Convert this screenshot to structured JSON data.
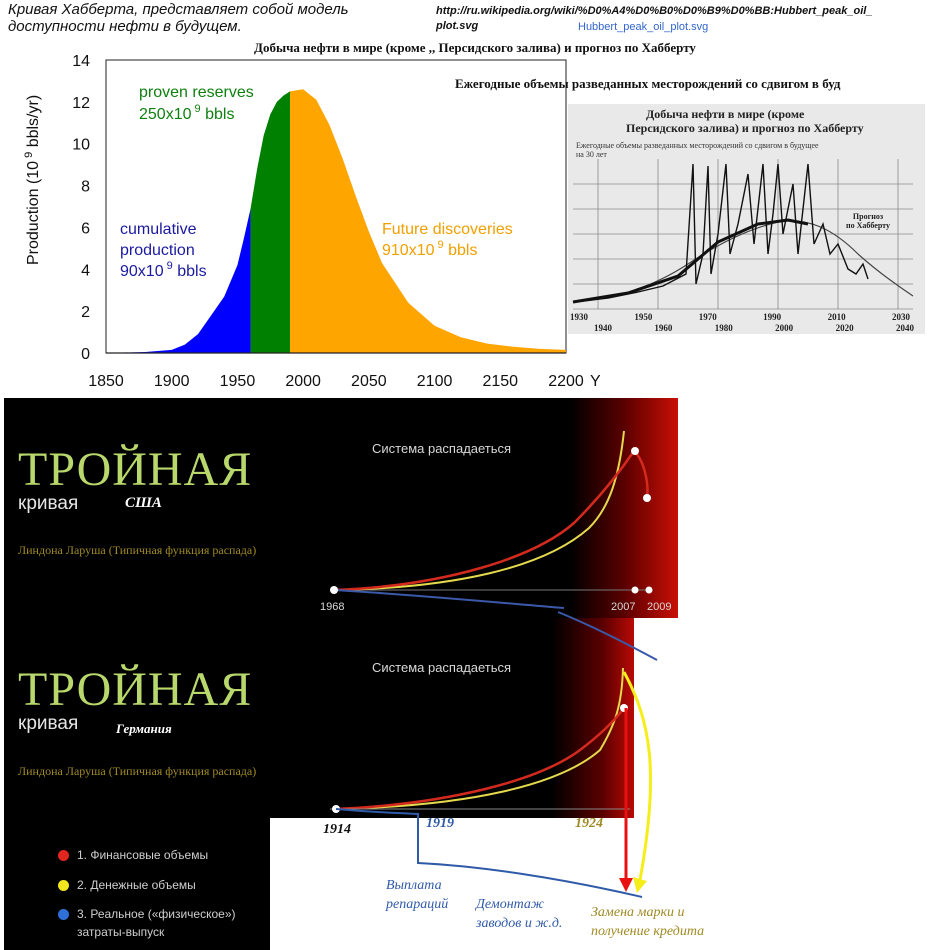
{
  "caption": "Кривая Хабберта, представляет собой модель доступности нефти в будущем.",
  "source": {
    "url": "http://ru.wikipedia.org/wiki/%D0%A4%D0%B0%D0%B9%D0%BB:Hubbert_peak_oil_plot.svg",
    "link_text": "Hubbert_peak_oil_plot.svg"
  },
  "hubbert_chart": {
    "title": "Добыча нефти в мире (кроме ,, Персидского залива) и прогноз по Хабберту",
    "subtitle": "Ежегодные объемы разведанных месторождений со сдвигом в буд",
    "ylabel": "Production (10 9 bbls/yr)",
    "xlabel": "Year",
    "x_ticks": [
      "1850",
      "1900",
      "1950",
      "2000",
      "2050",
      "2100",
      "2150",
      "2200"
    ],
    "y_ticks": [
      "0",
      "2",
      "4",
      "6",
      "8",
      "10",
      "12",
      "14"
    ],
    "labels": {
      "cumulative_1": "cumulative",
      "cumulative_2": "production",
      "cumulative_3": "90x10 9 bbls",
      "proven_1": "proven reserves",
      "proven_2": "250x10 9 bbls",
      "future_1": "Future discoveries",
      "future_2": "910x10 9 bbls"
    },
    "colors": {
      "cumulative": "#0000ff",
      "proven": "#008000",
      "future": "#ffa500",
      "cumulative_text": "#1a1aa0",
      "proven_text": "#0f7f0f",
      "future_text": "#f0a000"
    }
  },
  "chart_data": [
    {
      "type": "area",
      "title": "",
      "xlabel": "Year",
      "ylabel": "Production (10 9 bbls/yr)",
      "xlim": [
        1850,
        2200
      ],
      "ylim": [
        0,
        14
      ],
      "series": [
        {
          "name": "cumulative production",
          "x": [
            1850,
            1880,
            1900,
            1910,
            1920,
            1930,
            1940,
            1950,
            1955,
            1960
          ],
          "y": [
            0,
            0.05,
            0.15,
            0.4,
            0.9,
            1.8,
            2.7,
            4.2,
            5.5,
            6.9
          ]
        },
        {
          "name": "proven reserves",
          "x": [
            1960,
            1965,
            1970,
            1975,
            1980,
            1985,
            1990
          ],
          "y": [
            6.9,
            8.8,
            10.4,
            11.4,
            12.0,
            12.3,
            12.5
          ]
        },
        {
          "name": "Future discoveries",
          "x": [
            1990,
            2000,
            2010,
            2020,
            2030,
            2040,
            2050,
            2060,
            2080,
            2100,
            2120,
            2140,
            2160,
            2180,
            2200
          ],
          "y": [
            12.5,
            12.6,
            12.1,
            10.9,
            9.3,
            7.5,
            5.8,
            4.3,
            2.4,
            1.3,
            0.75,
            0.45,
            0.3,
            0.2,
            0.15
          ]
        }
      ]
    },
    {
      "type": "line",
      "title": "Добыча нефти в мире (кроме Персидского залива) и прогноз по Хабберту",
      "subtitle": "Ежегодные объемы разведанных месторождений со сдвигом в будущее на 30 лет",
      "xlim": [
        1930,
        2040
      ],
      "x_ticks_top": [
        "1930",
        "1950",
        "1970",
        "1990",
        "2010",
        "2030"
      ],
      "x_ticks_bottom": [
        "1940",
        "1960",
        "1980",
        "2000",
        "2020",
        "2040"
      ],
      "legend_label": "Прогноз по Хабберту"
    }
  ],
  "scan": {
    "title_1": "Добыча нефти в мире (кроме",
    "title_2": "Персидского залива) и прогноз по Хабберту",
    "sub_1": "Ежегодные объемы разведанных месторождений со сдвигом в будущее",
    "sub_2": "на 30 лет",
    "forecast_1": "Прогноз",
    "forecast_2": "по Хабберту",
    "ticks_top": [
      "1930",
      "1950",
      "1970",
      "1990",
      "2010",
      "2030"
    ],
    "ticks_bottom": [
      "1940",
      "1960",
      "1980",
      "2000",
      "2020",
      "2040"
    ]
  },
  "usa_panel": {
    "title_big": "ТРОЙНАЯ",
    "title_small": "кривая",
    "country": "США",
    "subtitle": "Линдона Ларуша (Типичная функция распада)",
    "system": "Система распадаеться",
    "years": [
      "1968",
      "2007",
      "2009"
    ]
  },
  "germany_panel": {
    "title_big": "ТРОЙНАЯ",
    "title_small": "кривая",
    "country": "Германия",
    "subtitle": "Линдона Ларуша (Типичная функция распада)",
    "system": "Система распадаеться",
    "years": [
      "1914",
      "1919",
      "1924"
    ]
  },
  "legend": {
    "items": [
      {
        "label": "1. Финансовые объемы",
        "color": "#e0261e"
      },
      {
        "label": "2. Денежные объемы",
        "color": "#f2e61e"
      },
      {
        "label": "3. Реальное («физическое»)",
        "label2": "затраты-выпуск",
        "color": "#2f6fd8"
      }
    ]
  },
  "annotations": {
    "reparations_1": "Выплата",
    "reparations_2": "репараций",
    "dismantle_1": "Демонтаж",
    "dismantle_2": "заводов и ж.д.",
    "mark_1": "Замена марки и",
    "mark_2": "получение кредита"
  }
}
